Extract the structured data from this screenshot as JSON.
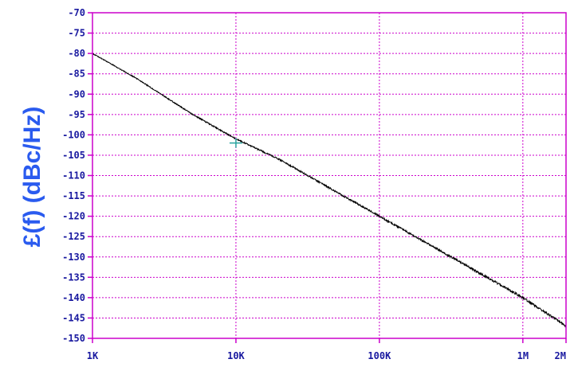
{
  "chart_data": {
    "type": "line",
    "title": "",
    "ylabel": "£(f) (dBc/Hz)",
    "xlabel": "",
    "x_scale": "log",
    "xlim": [
      1000,
      2000000
    ],
    "ylim": [
      -150,
      -70
    ],
    "y_ticks": [
      -70,
      -75,
      -80,
      -85,
      -90,
      -95,
      -100,
      -105,
      -110,
      -115,
      -120,
      -125,
      -130,
      -135,
      -140,
      -145,
      -150
    ],
    "x_ticks": [
      {
        "value": 1000,
        "label": "1K"
      },
      {
        "value": 10000,
        "label": "10K"
      },
      {
        "value": 100000,
        "label": "100K"
      },
      {
        "value": 1000000,
        "label": "1M"
      },
      {
        "value": 2000000,
        "label": "2M"
      }
    ],
    "grid": true,
    "series": [
      {
        "x": [
          1000,
          2000,
          5000,
          10000,
          20000,
          50000,
          100000,
          200000,
          500000,
          1000000,
          2000000
        ],
        "y": [
          -80,
          -86,
          -95,
          -101,
          -106,
          -114,
          -120,
          -126,
          -134,
          -140,
          -147
        ]
      }
    ],
    "marker": {
      "x": 10000,
      "y": -102
    },
    "colors": {
      "grid": "#cc00cc",
      "trace": "#000000",
      "marker": "#2aa5a0",
      "tick_text": "#1a1aa0",
      "ylabel": "#2a5bef"
    }
  }
}
